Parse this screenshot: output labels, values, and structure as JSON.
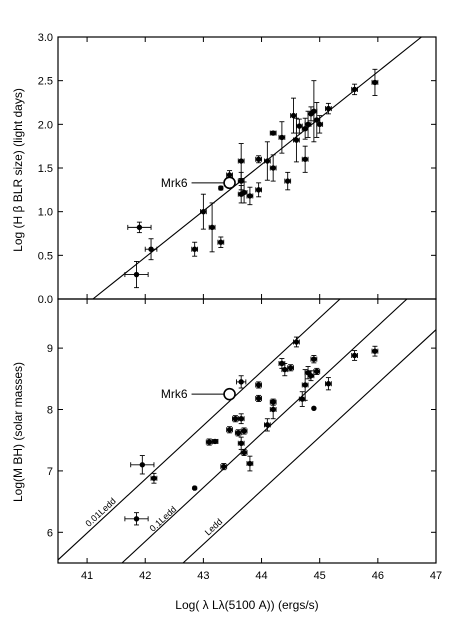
{
  "chart_data": [
    {
      "panel": "top",
      "type": "scatter",
      "ylabel": "Log (H β BLR size) (light days)",
      "xlim": [
        40.5,
        47
      ],
      "ylim": [
        0,
        3
      ],
      "yticks": [
        "0.0",
        "0.5",
        "1.0",
        "1.5",
        "2.0",
        "2.5",
        "3.0"
      ],
      "points": [
        {
          "x": 41.9,
          "y": 0.82,
          "xerr": 0.2,
          "yerr": 0.06
        },
        {
          "x": 41.85,
          "y": 0.28,
          "xerr": 0.2,
          "yerr": 0.15
        },
        {
          "x": 42.1,
          "y": 0.57,
          "xerr": 0.1,
          "yerr": 0.12
        },
        {
          "x": 42.85,
          "y": 0.57,
          "xerr": 0.05,
          "yerr": 0.08
        },
        {
          "x": 43.0,
          "y": 1.0,
          "xerr": 0.05,
          "yerr": 0.2
        },
        {
          "x": 43.15,
          "y": 0.82,
          "xerr": 0.05,
          "yerr": 0.28
        },
        {
          "x": 43.3,
          "y": 0.65,
          "xerr": 0.05,
          "yerr": 0.06
        },
        {
          "x": 43.3,
          "y": 1.27,
          "xerr": 0.02,
          "yerr": 0.02
        },
        {
          "x": 43.45,
          "y": 1.42,
          "xerr": 0.05,
          "yerr": 0.05
        },
        {
          "x": 43.65,
          "y": 1.58,
          "xerr": 0.05,
          "yerr": 0.2
        },
        {
          "x": 43.65,
          "y": 1.35,
          "xerr": 0.05,
          "yerr": 0.1
        },
        {
          "x": 43.65,
          "y": 1.2,
          "xerr": 0.05,
          "yerr": 0.1
        },
        {
          "x": 43.7,
          "y": 1.22,
          "xerr": 0.05,
          "yerr": 0.12
        },
        {
          "x": 43.8,
          "y": 1.18,
          "xerr": 0.05,
          "yerr": 0.1
        },
        {
          "x": 43.95,
          "y": 1.6,
          "xerr": 0.05,
          "yerr": 0.04
        },
        {
          "x": 43.95,
          "y": 1.25,
          "xerr": 0.05,
          "yerr": 0.08
        },
        {
          "x": 44.1,
          "y": 1.58,
          "xerr": 0.05,
          "yerr": 0.22
        },
        {
          "x": 44.2,
          "y": 1.5,
          "xerr": 0.05,
          "yerr": 0.15
        },
        {
          "x": 44.2,
          "y": 1.9,
          "xerr": 0.05,
          "yerr": 0.02
        },
        {
          "x": 44.35,
          "y": 1.85,
          "xerr": 0.05,
          "yerr": 0.18
        },
        {
          "x": 44.45,
          "y": 1.35,
          "xerr": 0.05,
          "yerr": 0.1
        },
        {
          "x": 44.55,
          "y": 2.1,
          "xerr": 0.05,
          "yerr": 0.2
        },
        {
          "x": 44.6,
          "y": 1.82,
          "xerr": 0.05,
          "yerr": 0.25
        },
        {
          "x": 44.65,
          "y": 1.98,
          "xerr": 0.05,
          "yerr": 0.08
        },
        {
          "x": 44.75,
          "y": 1.6,
          "xerr": 0.05,
          "yerr": 0.15
        },
        {
          "x": 44.75,
          "y": 1.95,
          "xerr": 0.05,
          "yerr": 0.12
        },
        {
          "x": 44.8,
          "y": 2.0,
          "xerr": 0.05,
          "yerr": 0.15
        },
        {
          "x": 44.85,
          "y": 2.12,
          "xerr": 0.05,
          "yerr": 0.08
        },
        {
          "x": 44.9,
          "y": 2.15,
          "xerr": 0.05,
          "yerr": 0.35
        },
        {
          "x": 44.95,
          "y": 2.05,
          "xerr": 0.05,
          "yerr": 0.2
        },
        {
          "x": 45.0,
          "y": 2.0,
          "xerr": 0.05,
          "yerr": 0.1
        },
        {
          "x": 45.15,
          "y": 2.18,
          "xerr": 0.05,
          "yerr": 0.06
        },
        {
          "x": 45.6,
          "y": 2.4,
          "xerr": 0.05,
          "yerr": 0.06
        },
        {
          "x": 45.95,
          "y": 2.48,
          "xerr": 0.05,
          "yerr": 0.15
        }
      ],
      "fit_line": [
        {
          "x": 41.1,
          "y": 0.0
        },
        {
          "x": 46.75,
          "y": 3.0
        }
      ],
      "highlight": {
        "label": "Mrk6",
        "x": 43.45,
        "y": 1.33
      }
    },
    {
      "panel": "bottom",
      "type": "scatter",
      "ylabel": "Log(M BH) (solar masses)",
      "xlabel": "Log( λ Lλ(5100 A)) (ergs/s)",
      "xlim": [
        40.5,
        47
      ],
      "ylim": [
        5.5,
        9.8
      ],
      "xticks": [
        "41",
        "42",
        "43",
        "44",
        "45",
        "46",
        "47"
      ],
      "yticks": [
        "6",
        "7",
        "8",
        "9"
      ],
      "points": [
        {
          "x": 41.95,
          "y": 7.1,
          "xerr": 0.2,
          "yerr": 0.15
        },
        {
          "x": 41.85,
          "y": 6.22,
          "xerr": 0.2,
          "yerr": 0.1
        },
        {
          "x": 42.15,
          "y": 6.88,
          "xerr": 0.05,
          "yerr": 0.08
        },
        {
          "x": 42.85,
          "y": 6.72,
          "xerr": 0.02,
          "yerr": 0.02
        },
        {
          "x": 43.1,
          "y": 7.47,
          "xerr": 0.05,
          "yerr": 0.05
        },
        {
          "x": 43.2,
          "y": 7.48,
          "xerr": 0.05,
          "yerr": 0.03
        },
        {
          "x": 43.35,
          "y": 7.07,
          "xerr": 0.05,
          "yerr": 0.05
        },
        {
          "x": 43.45,
          "y": 7.67,
          "xerr": 0.05,
          "yerr": 0.05
        },
        {
          "x": 43.55,
          "y": 7.85,
          "xerr": 0.05,
          "yerr": 0.05
        },
        {
          "x": 43.6,
          "y": 7.62,
          "xerr": 0.05,
          "yerr": 0.05
        },
        {
          "x": 43.65,
          "y": 7.85,
          "xerr": 0.05,
          "yerr": 0.08
        },
        {
          "x": 43.65,
          "y": 7.45,
          "xerr": 0.05,
          "yerr": 0.1
        },
        {
          "x": 43.7,
          "y": 7.65,
          "xerr": 0.05,
          "yerr": 0.05
        },
        {
          "x": 43.7,
          "y": 7.3,
          "xerr": 0.05,
          "yerr": 0.05
        },
        {
          "x": 43.65,
          "y": 8.45,
          "xerr": 0.08,
          "yerr": 0.1
        },
        {
          "x": 43.8,
          "y": 7.12,
          "xerr": 0.05,
          "yerr": 0.12
        },
        {
          "x": 43.95,
          "y": 8.4,
          "xerr": 0.05,
          "yerr": 0.05
        },
        {
          "x": 43.95,
          "y": 8.18,
          "xerr": 0.05,
          "yerr": 0.05
        },
        {
          "x": 44.1,
          "y": 7.75,
          "xerr": 0.05,
          "yerr": 0.1
        },
        {
          "x": 44.2,
          "y": 8.0,
          "xerr": 0.05,
          "yerr": 0.15
        },
        {
          "x": 44.2,
          "y": 8.12,
          "xerr": 0.05,
          "yerr": 0.05
        },
        {
          "x": 44.35,
          "y": 8.75,
          "xerr": 0.05,
          "yerr": 0.08
        },
        {
          "x": 44.4,
          "y": 8.65,
          "xerr": 0.05,
          "yerr": 0.1
        },
        {
          "x": 44.5,
          "y": 8.68,
          "xerr": 0.05,
          "yerr": 0.05
        },
        {
          "x": 44.6,
          "y": 9.1,
          "xerr": 0.05,
          "yerr": 0.08
        },
        {
          "x": 44.7,
          "y": 8.17,
          "xerr": 0.05,
          "yerr": 0.12
        },
        {
          "x": 44.75,
          "y": 8.4,
          "xerr": 0.05,
          "yerr": 0.25
        },
        {
          "x": 44.8,
          "y": 8.6,
          "xerr": 0.05,
          "yerr": 0.1
        },
        {
          "x": 44.85,
          "y": 8.55,
          "xerr": 0.05,
          "yerr": 0.08
        },
        {
          "x": 44.9,
          "y": 8.82,
          "xerr": 0.05,
          "yerr": 0.06
        },
        {
          "x": 44.95,
          "y": 8.62,
          "xerr": 0.05,
          "yerr": 0.05
        },
        {
          "x": 44.9,
          "y": 8.02,
          "xerr": 0,
          "yerr": 0
        },
        {
          "x": 45.15,
          "y": 8.42,
          "xerr": 0.05,
          "yerr": 0.1
        },
        {
          "x": 45.6,
          "y": 8.88,
          "xerr": 0.05,
          "yerr": 0.08
        },
        {
          "x": 45.95,
          "y": 8.95,
          "xerr": 0.05,
          "yerr": 0.08
        }
      ],
      "eddington_lines": [
        {
          "label": "0.01Ledd",
          "start": {
            "x": 40.5,
            "y": 5.55
          },
          "end": {
            "x": 45.35,
            "y": 9.8
          }
        },
        {
          "label": "0.1Ledd",
          "start": {
            "x": 41.6,
            "y": 5.5
          },
          "end": {
            "x": 46.5,
            "y": 9.8
          }
        },
        {
          "label": "Ledd",
          "start": {
            "x": 42.65,
            "y": 5.5
          },
          "end": {
            "x": 47.0,
            "y": 9.3
          }
        }
      ],
      "highlight": {
        "label": "Mrk6",
        "x": 43.45,
        "y": 8.25
      }
    }
  ]
}
